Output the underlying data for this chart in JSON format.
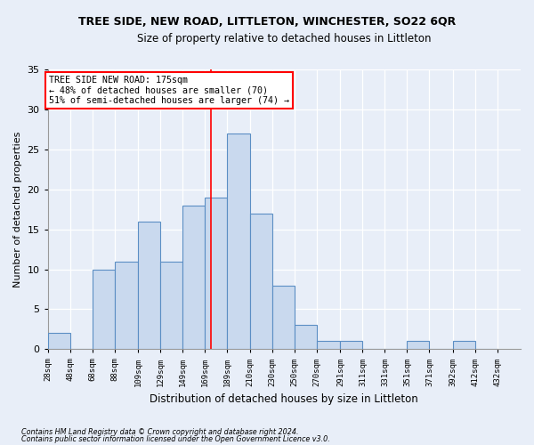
{
  "title": "TREE SIDE, NEW ROAD, LITTLETON, WINCHESTER, SO22 6QR",
  "subtitle": "Size of property relative to detached houses in Littleton",
  "xlabel": "Distribution of detached houses by size in Littleton",
  "ylabel": "Number of detached properties",
  "footnote1": "Contains HM Land Registry data © Crown copyright and database right 2024.",
  "footnote2": "Contains public sector information licensed under the Open Government Licence v3.0.",
  "bar_values": [
    2,
    0,
    10,
    11,
    16,
    11,
    18,
    19,
    27,
    17,
    8,
    3,
    1,
    1,
    0,
    0,
    1,
    0,
    1,
    0
  ],
  "categories": [
    "28sqm",
    "48sqm",
    "68sqm",
    "88sqm",
    "109sqm",
    "129sqm",
    "149sqm",
    "169sqm",
    "189sqm",
    "210sqm",
    "230sqm",
    "250sqm",
    "270sqm",
    "291sqm",
    "311sqm",
    "331sqm",
    "351sqm",
    "371sqm",
    "392sqm",
    "412sqm",
    "432sqm"
  ],
  "bar_color": "#c9d9ee",
  "bar_edge_color": "#5b8ec4",
  "vline_x": 175,
  "vline_color": "red",
  "annotation_text": "TREE SIDE NEW ROAD: 175sqm\n← 48% of detached houses are smaller (70)\n51% of semi-detached houses are larger (74) →",
  "annotation_box_color": "white",
  "annotation_box_edge": "red",
  "bg_color": "#e8eef8",
  "grid_color": "white",
  "ylim": [
    0,
    35
  ],
  "bins": [
    28,
    48,
    68,
    88,
    109,
    129,
    149,
    169,
    189,
    210,
    230,
    250,
    270,
    291,
    311,
    331,
    351,
    371,
    392,
    412,
    432,
    453
  ]
}
